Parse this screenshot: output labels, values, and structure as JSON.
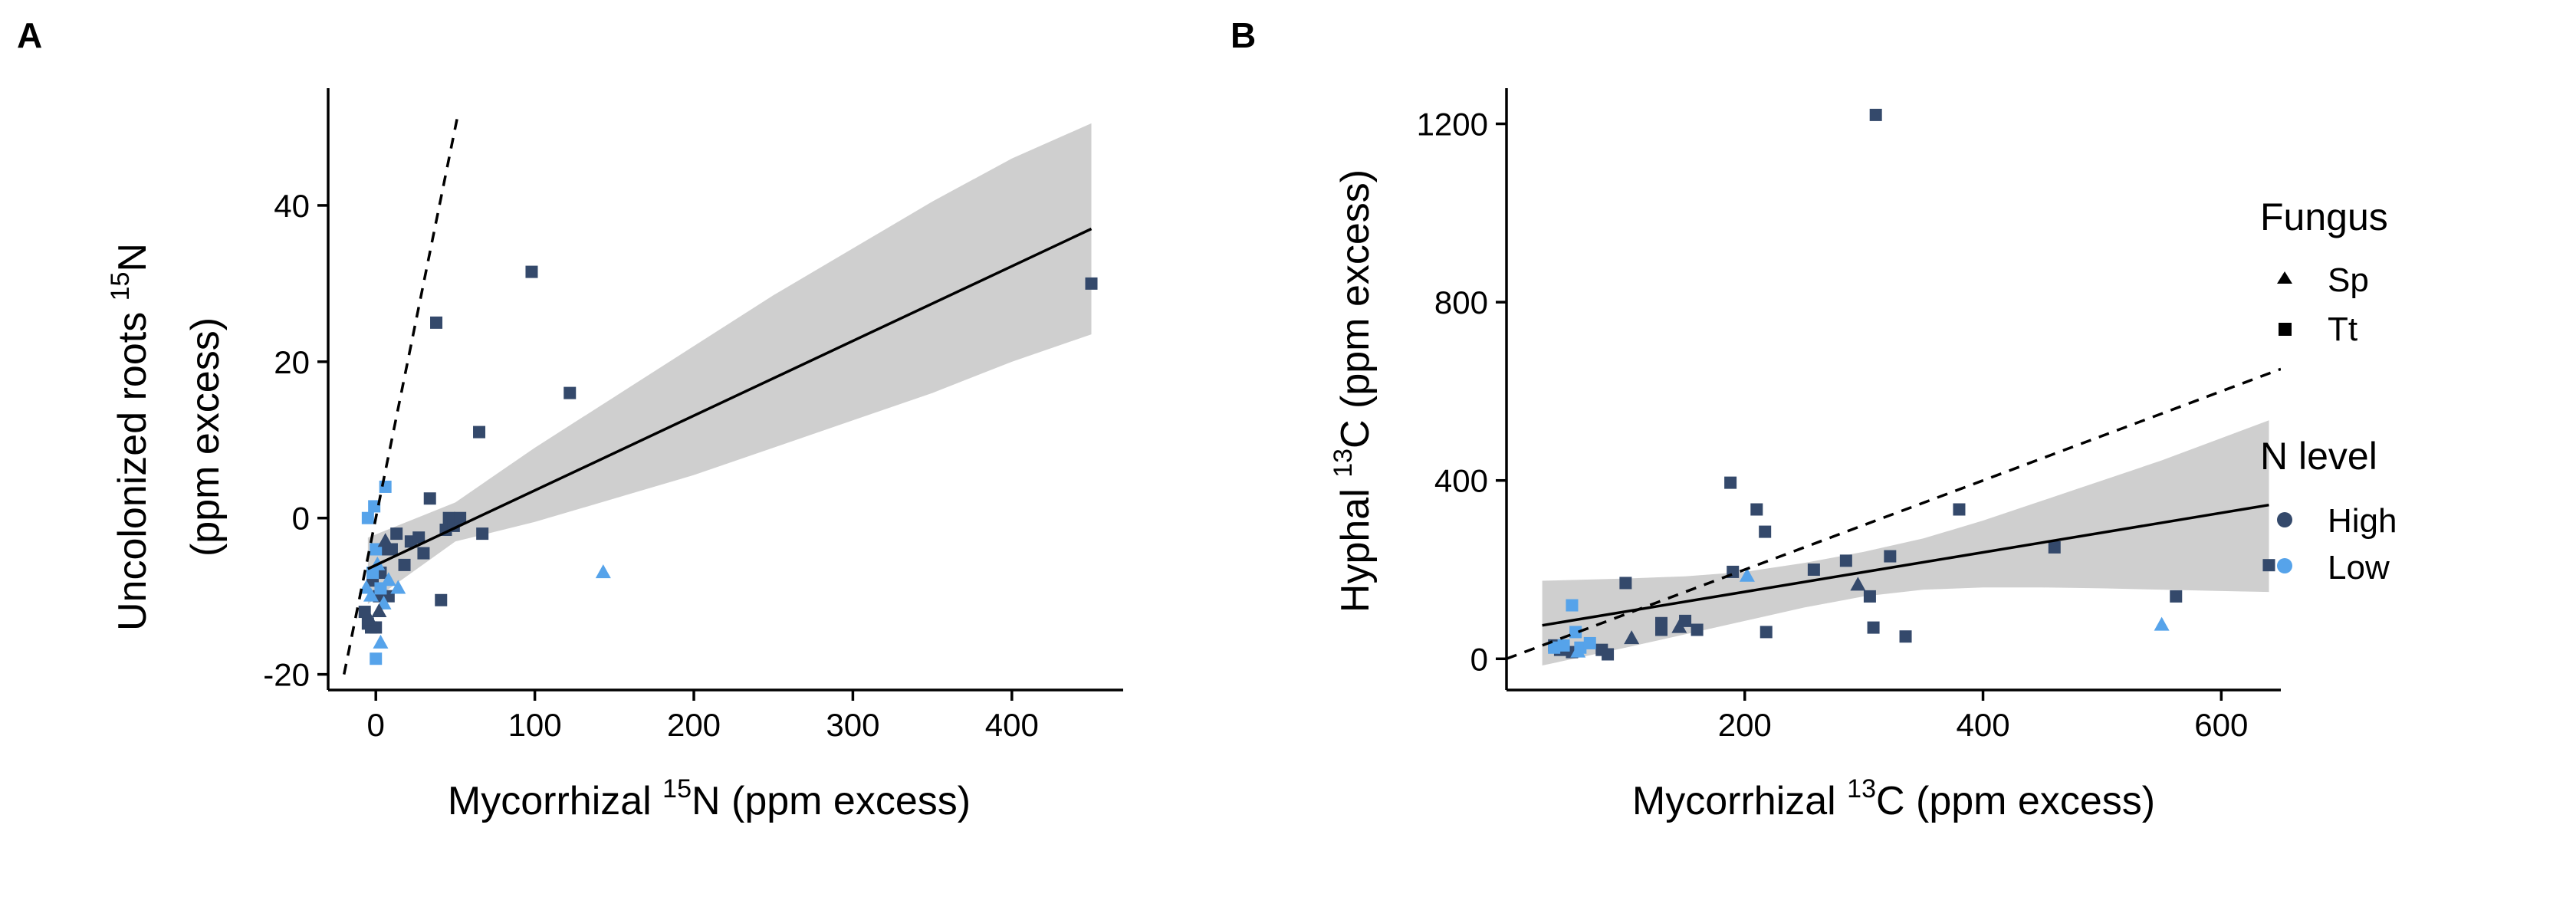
{
  "panels": {
    "a": "A",
    "b": "B"
  },
  "legend": {
    "fungus_title": "Fungus",
    "fungus_items": [
      {
        "label": "Sp",
        "shape": "triangle"
      },
      {
        "label": "Tt",
        "shape": "square"
      }
    ],
    "nlevel_title": "N level",
    "nlevel_items": [
      {
        "label": "High",
        "color": "#34496b"
      },
      {
        "label": "Low",
        "color": "#56a3ea"
      }
    ]
  },
  "colors": {
    "High": "#34496b",
    "Low": "#56a3ea",
    "band": "#cfcfcf"
  },
  "chart_data": [
    {
      "type": "scatter",
      "panel": "A",
      "xlabel_parts": [
        "Mycorrhizal ",
        "15",
        "N (ppm excess)"
      ],
      "ylabel_line1_parts": [
        "Uncolonized roots ",
        "15",
        "N"
      ],
      "ylabel_line2": "(ppm excess)",
      "xlim": [
        -30,
        470
      ],
      "ylim": [
        -22,
        55
      ],
      "xticks": [
        0,
        100,
        200,
        300,
        400
      ],
      "yticks": [
        -20,
        0,
        20,
        40
      ],
      "grid": false,
      "fit_line": {
        "x0": -5,
        "y0": -6.5,
        "x1": 450,
        "y1": 37
      },
      "conf_band": {
        "x": [
          -5,
          50,
          100,
          150,
          200,
          250,
          300,
          350,
          400,
          450
        ],
        "lower": [
          -11,
          -3,
          -0.5,
          2.5,
          5.5,
          9,
          12.5,
          16,
          20,
          23.5
        ],
        "upper": [
          -2.5,
          2,
          9,
          15.5,
          22,
          28.5,
          34.5,
          40.5,
          46,
          50.5
        ]
      },
      "identity_line": {
        "x0": -20,
        "y0": -20,
        "x1": 52,
        "y1": 52
      },
      "points": [
        {
          "x": -7,
          "y": -12,
          "fungus": "Tt",
          "n": "High"
        },
        {
          "x": -5,
          "y": -13.5,
          "fungus": "Tt",
          "n": "High"
        },
        {
          "x": -3,
          "y": -14,
          "fungus": "Tt",
          "n": "High"
        },
        {
          "x": -2,
          "y": -8,
          "fungus": "Tt",
          "n": "High"
        },
        {
          "x": 0,
          "y": -14,
          "fungus": "Tt",
          "n": "High"
        },
        {
          "x": 2,
          "y": -10,
          "fungus": "Tt",
          "n": "High"
        },
        {
          "x": 3,
          "y": -7,
          "fungus": "Tt",
          "n": "High"
        },
        {
          "x": 5,
          "y": -4,
          "fungus": "Tt",
          "n": "High"
        },
        {
          "x": 8,
          "y": -10,
          "fungus": "Tt",
          "n": "High"
        },
        {
          "x": 10,
          "y": -4,
          "fungus": "Tt",
          "n": "High"
        },
        {
          "x": 13,
          "y": -2,
          "fungus": "Tt",
          "n": "High"
        },
        {
          "x": 18,
          "y": -6,
          "fungus": "Tt",
          "n": "High"
        },
        {
          "x": 22,
          "y": -3,
          "fungus": "Tt",
          "n": "High"
        },
        {
          "x": 27,
          "y": -2.5,
          "fungus": "Tt",
          "n": "High"
        },
        {
          "x": 30,
          "y": -4.5,
          "fungus": "Tt",
          "n": "High"
        },
        {
          "x": 34,
          "y": 2.5,
          "fungus": "Tt",
          "n": "High"
        },
        {
          "x": 38,
          "y": 25,
          "fungus": "Tt",
          "n": "High"
        },
        {
          "x": 41,
          "y": -10.5,
          "fungus": "Tt",
          "n": "High"
        },
        {
          "x": 44,
          "y": -1.5,
          "fungus": "Tt",
          "n": "High"
        },
        {
          "x": 46,
          "y": 0,
          "fungus": "Tt",
          "n": "High"
        },
        {
          "x": 49,
          "y": -1,
          "fungus": "Tt",
          "n": "High"
        },
        {
          "x": 53,
          "y": 0,
          "fungus": "Tt",
          "n": "High"
        },
        {
          "x": 65,
          "y": 11,
          "fungus": "Tt",
          "n": "High"
        },
        {
          "x": 67,
          "y": -2,
          "fungus": "Tt",
          "n": "High"
        },
        {
          "x": 98,
          "y": 31.5,
          "fungus": "Tt",
          "n": "High"
        },
        {
          "x": 122,
          "y": 16,
          "fungus": "Tt",
          "n": "High"
        },
        {
          "x": 450,
          "y": 30,
          "fungus": "Tt",
          "n": "High"
        },
        {
          "x": -5,
          "y": 0,
          "fungus": "Tt",
          "n": "Low"
        },
        {
          "x": -1,
          "y": 1.5,
          "fungus": "Tt",
          "n": "Low"
        },
        {
          "x": 6,
          "y": 4,
          "fungus": "Tt",
          "n": "Low"
        },
        {
          "x": 0,
          "y": -4,
          "fungus": "Tt",
          "n": "Low"
        },
        {
          "x": 0,
          "y": -18,
          "fungus": "Tt",
          "n": "Low"
        },
        {
          "x": 3,
          "y": -9,
          "fungus": "Tt",
          "n": "Low"
        },
        {
          "x": -2,
          "y": -7,
          "fungus": "Tt",
          "n": "Low"
        },
        {
          "x": -6,
          "y": -9,
          "fungus": "Triangle",
          "n": "Low"
        },
        {
          "x": -3,
          "y": -10,
          "fungus": "Sp",
          "n": "Low"
        },
        {
          "x": 1,
          "y": -6,
          "fungus": "Sp",
          "n": "Low"
        },
        {
          "x": 3,
          "y": -16,
          "fungus": "Sp",
          "n": "Low"
        },
        {
          "x": 5,
          "y": -11,
          "fungus": "Sp",
          "n": "Low"
        },
        {
          "x": 8,
          "y": -8,
          "fungus": "Sp",
          "n": "Low"
        },
        {
          "x": 14,
          "y": -9,
          "fungus": "Sp",
          "n": "Low"
        },
        {
          "x": 143,
          "y": -7,
          "fungus": "Sp",
          "n": "Low"
        },
        {
          "x": -4,
          "y": -13,
          "fungus": "Sp",
          "n": "High"
        },
        {
          "x": 2,
          "y": -12,
          "fungus": "Sp",
          "n": "High"
        },
        {
          "x": 6,
          "y": -3,
          "fungus": "Sp",
          "n": "High"
        }
      ]
    },
    {
      "type": "scatter",
      "panel": "B",
      "xlabel_parts": [
        "Mycorrhizal ",
        "13",
        "C (ppm excess)"
      ],
      "ylabel_parts": [
        "Hyphal ",
        "13",
        "C (ppm excess)"
      ],
      "xlim": [
        0,
        650
      ],
      "ylim": [
        -70,
        1280
      ],
      "xticks": [
        200,
        400,
        600
      ],
      "yticks": [
        0,
        400,
        800,
        1200
      ],
      "grid": false,
      "fit_line": {
        "x0": 30,
        "y0": 75,
        "x1": 640,
        "y1": 345
      },
      "conf_band": {
        "x": [
          30,
          100,
          150,
          200,
          250,
          300,
          350,
          400,
          450,
          500,
          550,
          600,
          640
        ],
        "lower": [
          -15,
          25,
          55,
          85,
          115,
          140,
          155,
          160,
          160,
          158,
          155,
          152,
          150
        ],
        "upper": [
          175,
          180,
          185,
          195,
          215,
          240,
          270,
          310,
          355,
          400,
          445,
          495,
          535
        ]
      },
      "identity_line": {
        "x0": 0,
        "y0": 0,
        "x1": 650,
        "y1": 650
      },
      "points": [
        {
          "x": 40,
          "y": 30,
          "fungus": "Tt",
          "n": "High"
        },
        {
          "x": 45,
          "y": 20,
          "fungus": "Tt",
          "n": "High"
        },
        {
          "x": 55,
          "y": 15,
          "fungus": "Tt",
          "n": "High"
        },
        {
          "x": 80,
          "y": 20,
          "fungus": "Tt",
          "n": "High"
        },
        {
          "x": 85,
          "y": 10,
          "fungus": "Tt",
          "n": "High"
        },
        {
          "x": 100,
          "y": 170,
          "fungus": "Tt",
          "n": "High"
        },
        {
          "x": 130,
          "y": 65,
          "fungus": "Tt",
          "n": "High"
        },
        {
          "x": 130,
          "y": 80,
          "fungus": "Tt",
          "n": "High"
        },
        {
          "x": 150,
          "y": 85,
          "fungus": "Tt",
          "n": "High"
        },
        {
          "x": 160,
          "y": 65,
          "fungus": "Tt",
          "n": "High"
        },
        {
          "x": 188,
          "y": 395,
          "fungus": "Tt",
          "n": "High"
        },
        {
          "x": 190,
          "y": 195,
          "fungus": "Tt",
          "n": "High"
        },
        {
          "x": 210,
          "y": 335,
          "fungus": "Tt",
          "n": "High"
        },
        {
          "x": 217,
          "y": 285,
          "fungus": "Tt",
          "n": "High"
        },
        {
          "x": 218,
          "y": 60,
          "fungus": "Tt",
          "n": "High"
        },
        {
          "x": 258,
          "y": 200,
          "fungus": "Tt",
          "n": "High"
        },
        {
          "x": 285,
          "y": 220,
          "fungus": "Tt",
          "n": "High"
        },
        {
          "x": 305,
          "y": 140,
          "fungus": "Tt",
          "n": "High"
        },
        {
          "x": 308,
          "y": 70,
          "fungus": "Tt",
          "n": "High"
        },
        {
          "x": 310,
          "y": 1220,
          "fungus": "Tt",
          "n": "High"
        },
        {
          "x": 322,
          "y": 230,
          "fungus": "Tt",
          "n": "High"
        },
        {
          "x": 335,
          "y": 50,
          "fungus": "Tt",
          "n": "High"
        },
        {
          "x": 380,
          "y": 335,
          "fungus": "Tt",
          "n": "High"
        },
        {
          "x": 460,
          "y": 250,
          "fungus": "Tt",
          "n": "High"
        },
        {
          "x": 562,
          "y": 140,
          "fungus": "Tt",
          "n": "High"
        },
        {
          "x": 640,
          "y": 210,
          "fungus": "Tt",
          "n": "High"
        },
        {
          "x": 40,
          "y": 25,
          "fungus": "Tt",
          "n": "Low"
        },
        {
          "x": 48,
          "y": 30,
          "fungus": "Tt",
          "n": "Low"
        },
        {
          "x": 55,
          "y": 120,
          "fungus": "Tt",
          "n": "Low"
        },
        {
          "x": 58,
          "y": 60,
          "fungus": "Tt",
          "n": "Low"
        },
        {
          "x": 62,
          "y": 25,
          "fungus": "Tt",
          "n": "Low"
        },
        {
          "x": 70,
          "y": 35,
          "fungus": "Tt",
          "n": "Low"
        },
        {
          "x": 105,
          "y": 45,
          "fungus": "Sp",
          "n": "High"
        },
        {
          "x": 145,
          "y": 70,
          "fungus": "Sp",
          "n": "High"
        },
        {
          "x": 295,
          "y": 165,
          "fungus": "Sp",
          "n": "High"
        },
        {
          "x": 60,
          "y": 15,
          "fungus": "Sp",
          "n": "Low"
        },
        {
          "x": 202,
          "y": 185,
          "fungus": "Sp",
          "n": "Low"
        },
        {
          "x": 550,
          "y": 75,
          "fungus": "Sp",
          "n": "Low"
        }
      ]
    }
  ]
}
